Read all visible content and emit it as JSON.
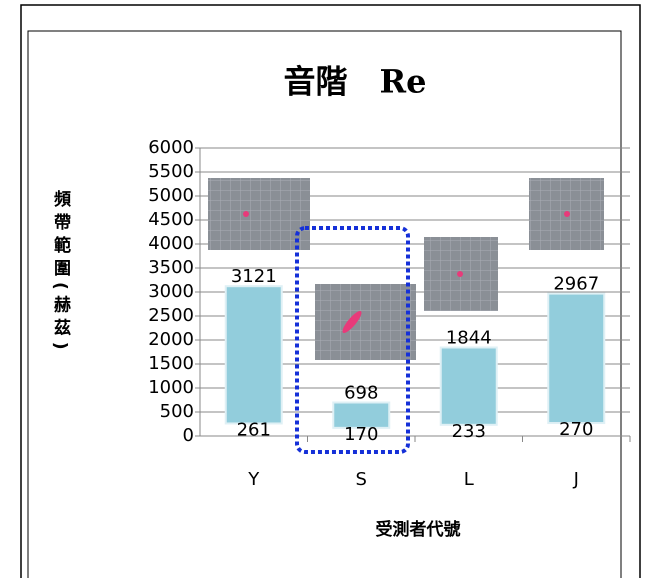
{
  "chart_data": {
    "type": "range-bar",
    "title": "音階　Re",
    "x_label": "受測者代號",
    "y_label": "頻帶範圍(赫茲)",
    "categories": [
      "Y",
      "S",
      "L",
      "J"
    ],
    "low": [
      261,
      170,
      233,
      270
    ],
    "high": [
      3121,
      698,
      1844,
      2967
    ],
    "color": "#92cddc",
    "ylim": [
      0,
      6000
    ],
    "yticks": [
      0,
      500,
      1000,
      1500,
      2000,
      2500,
      3000,
      3500,
      4000,
      4500,
      5000,
      5500,
      6000
    ],
    "grid": true
  }
}
